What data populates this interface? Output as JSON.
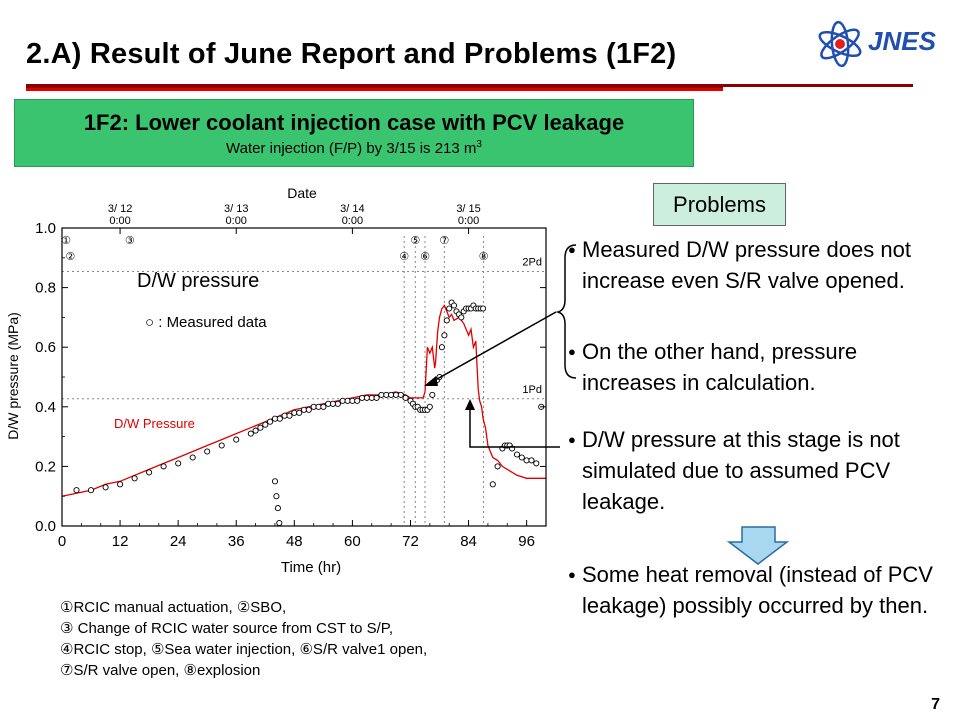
{
  "slide": {
    "title": "2.A)    Result of June Report and Problems (1F2)",
    "logo_text": "JNES",
    "page_number": "7"
  },
  "case_box": {
    "title": "1F2: Lower coolant injection case with PCV leakage",
    "subtitle": "Water injection (F/P) by 3/15 is 213 m",
    "subtitle_sup": "3"
  },
  "problems_label": "Problems",
  "bullets": [
    "Measured D/W pressure does not increase even S/R valve opened.",
    "On the other hand, pressure increases in calculation.",
    "D/W pressure at this stage is not simulated due to assumed PCV leakage.",
    "Some heat removal (instead of PCV leakage) possibly occurred by then."
  ],
  "event_legend": [
    "①RCIC manual actuation, ②SBO,",
    "③ Change of RCIC water source from CST to S/P,",
    "④RCIC stop, ⑤Sea water injection, ⑥S/R valve1 open,",
    "⑦S/R valve open, ⑧explosion"
  ],
  "colors": {
    "case_box": "#3bc46f",
    "problems_box": "#cceedd",
    "calc_line": "#e00000",
    "rule": "#8b0000",
    "arrow_fill": "#a8d8f0"
  },
  "chart_data": {
    "type": "line",
    "xlabel": "Time (hr)",
    "ylabel": "D/W pressure (MPa)",
    "top_axis_label": "Date",
    "xlim": [
      0,
      100
    ],
    "ylim": [
      0,
      1.0
    ],
    "x_ticks": [
      0,
      12,
      24,
      36,
      48,
      60,
      72,
      84,
      96
    ],
    "y_ticks": [
      "0.0",
      "0.2",
      "0.4",
      "0.6",
      "0.8",
      "1.0"
    ],
    "date_ticks": [
      {
        "x": 12,
        "label": "3/ 12",
        "sub": "0:00"
      },
      {
        "x": 36,
        "label": "3/ 13",
        "sub": "0:00"
      },
      {
        "x": 60,
        "label": "3/ 14",
        "sub": "0:00"
      },
      {
        "x": 84,
        "label": "3/ 15",
        "sub": "0:00"
      }
    ],
    "ref_lines": [
      {
        "y": 0.854,
        "label": "2Pd"
      },
      {
        "y": 0.427,
        "label": "1Pd"
      }
    ],
    "annotations": {
      "plot_title": "D/W pressure",
      "marker_legend": "○ : Measured data",
      "calc_label": "D/W Pressure"
    },
    "events": [
      {
        "mark": "①",
        "x": 0.0
      },
      {
        "mark": "②",
        "x": 0.9
      },
      {
        "mark": "③",
        "x": 14.0
      },
      {
        "mark": "④",
        "x": 70.7
      },
      {
        "mark": "⑤",
        "x": 73.0
      },
      {
        "mark": "⑥",
        "x": 75.0
      },
      {
        "mark": "⑦",
        "x": 79.0
      },
      {
        "mark": "⑧",
        "x": 87.1
      }
    ],
    "series": [
      {
        "name": "",
        "style": "line",
        "x": [
          0,
          3,
          6,
          9,
          12,
          15,
          18,
          21,
          24,
          27,
          30,
          33,
          36,
          39,
          42,
          45,
          48,
          51,
          54,
          57,
          60,
          63,
          66,
          69,
          71,
          72,
          73,
          74,
          74.6,
          75,
          75.5,
          76,
          76.5,
          77,
          77.2,
          77.6,
          78,
          78.5,
          79,
          79.5,
          80,
          80.5,
          81,
          82,
          83,
          84,
          84.5,
          85,
          85.5,
          86,
          86.3,
          86.7,
          87,
          87.5,
          88,
          88.5,
          89,
          90,
          91,
          92,
          94,
          96,
          98,
          100
        ],
        "y": [
          0.1,
          0.11,
          0.12,
          0.14,
          0.15,
          0.17,
          0.19,
          0.21,
          0.23,
          0.25,
          0.27,
          0.29,
          0.31,
          0.33,
          0.35,
          0.37,
          0.39,
          0.4,
          0.41,
          0.42,
          0.43,
          0.44,
          0.44,
          0.45,
          0.44,
          0.43,
          0.43,
          0.43,
          0.43,
          0.45,
          0.6,
          0.58,
          0.6,
          0.53,
          0.55,
          0.65,
          0.7,
          0.73,
          0.74,
          0.72,
          0.7,
          0.71,
          0.69,
          0.7,
          0.68,
          0.64,
          0.66,
          0.6,
          0.62,
          0.46,
          0.42,
          0.4,
          0.36,
          0.33,
          0.27,
          0.25,
          0.23,
          0.22,
          0.2,
          0.19,
          0.17,
          0.16,
          0.16,
          0.16
        ]
      },
      {
        "name": "Measured data",
        "style": "markers",
        "x": [
          3,
          6,
          9,
          12,
          15,
          18,
          21,
          24,
          27,
          30,
          33,
          36,
          39,
          40,
          41,
          42,
          43,
          44,
          45,
          46,
          47,
          48,
          49,
          50,
          51,
          52,
          53,
          54,
          55,
          56,
          57,
          58,
          59,
          60,
          61,
          62,
          63,
          64,
          65,
          66,
          67,
          68,
          69,
          70,
          71,
          72,
          72.5,
          73,
          73.5,
          74,
          74.5,
          75,
          75.5,
          76,
          76.5,
          77,
          77.5,
          78,
          78.5,
          79,
          79.5,
          80,
          80.5,
          81,
          81.5,
          82,
          82.5,
          83,
          83.5,
          84,
          84.5,
          85,
          85.5,
          86,
          86.5,
          87,
          44,
          44.3,
          44.6,
          44.9,
          89,
          90,
          91,
          91.5,
          92,
          92.5,
          93,
          94,
          95,
          96,
          97,
          98,
          99
        ],
        "y": [
          0.12,
          0.12,
          0.13,
          0.14,
          0.16,
          0.18,
          0.2,
          0.21,
          0.23,
          0.25,
          0.27,
          0.29,
          0.31,
          0.32,
          0.33,
          0.34,
          0.35,
          0.36,
          0.36,
          0.37,
          0.37,
          0.38,
          0.38,
          0.39,
          0.39,
          0.4,
          0.4,
          0.4,
          0.41,
          0.41,
          0.41,
          0.42,
          0.42,
          0.42,
          0.42,
          0.43,
          0.43,
          0.43,
          0.43,
          0.44,
          0.44,
          0.44,
          0.44,
          0.44,
          0.43,
          0.42,
          0.41,
          0.4,
          0.4,
          0.39,
          0.39,
          0.39,
          0.39,
          0.4,
          0.44,
          0.48,
          0.49,
          0.5,
          0.6,
          0.64,
          0.69,
          0.73,
          0.75,
          0.74,
          0.72,
          0.71,
          0.7,
          0.72,
          0.73,
          0.73,
          0.73,
          0.74,
          0.73,
          0.73,
          0.73,
          0.73,
          0.15,
          0.1,
          0.06,
          0.01,
          0.14,
          0.2,
          0.26,
          0.27,
          0.27,
          0.27,
          0.26,
          0.24,
          0.23,
          0.22,
          0.22,
          0.21,
          0.4
        ]
      }
    ]
  }
}
